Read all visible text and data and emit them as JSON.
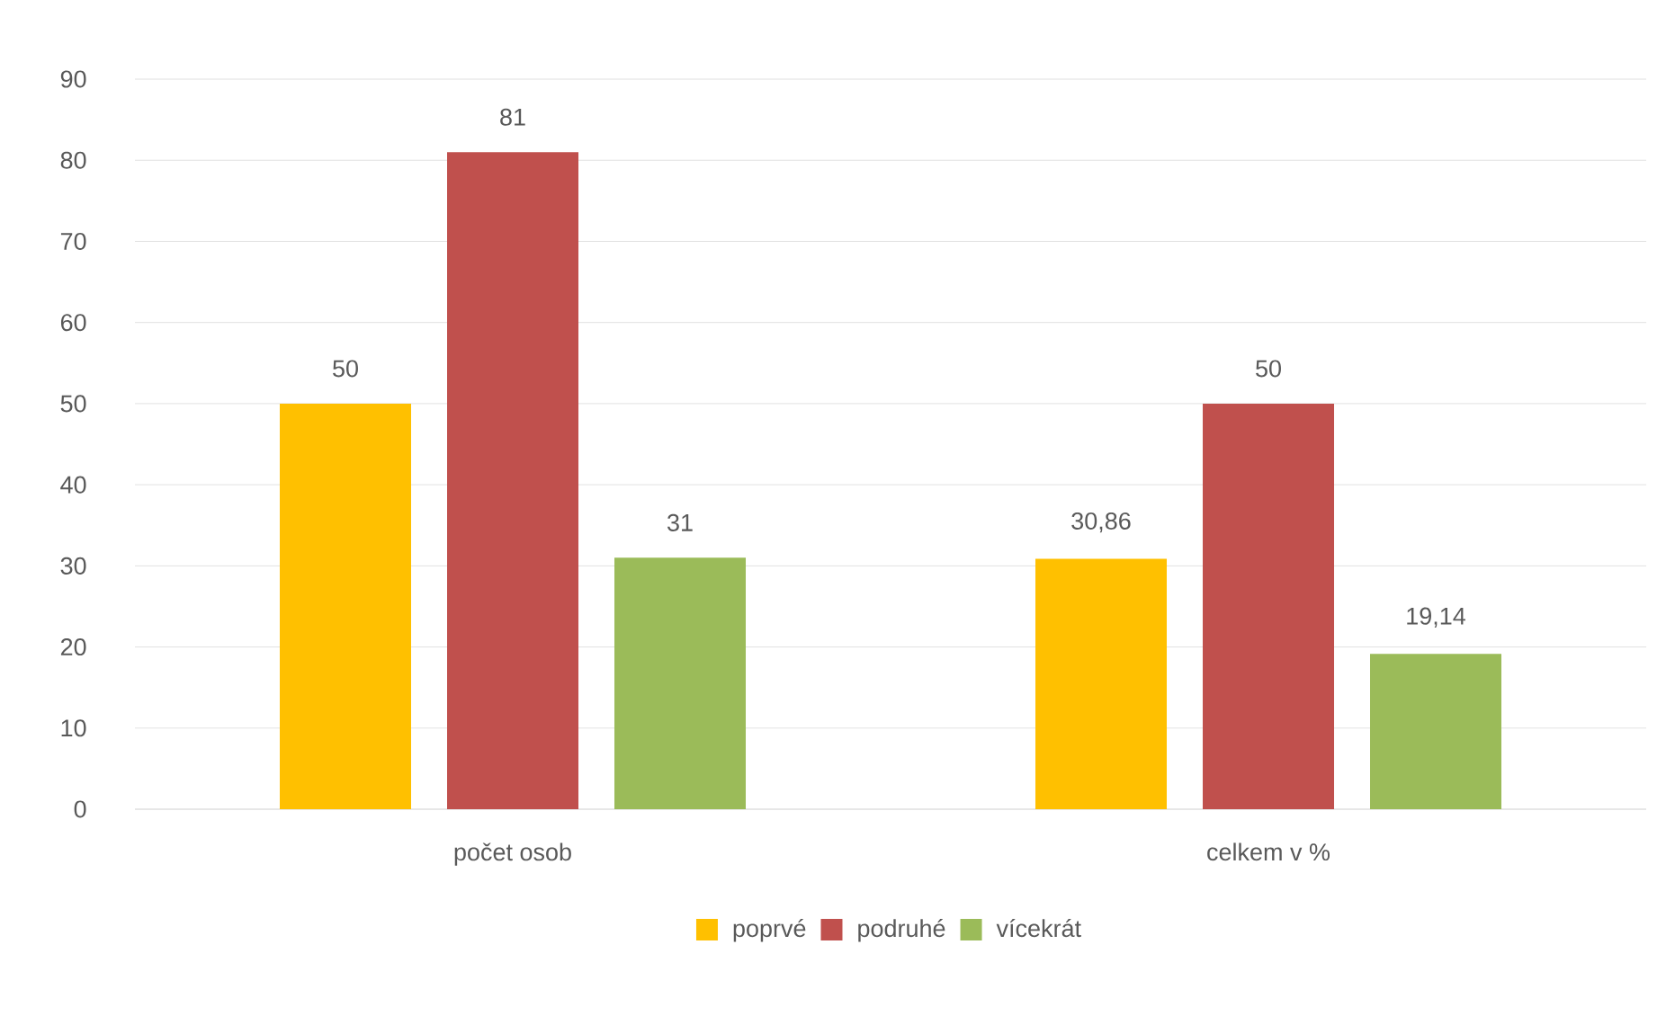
{
  "chart_data": {
    "type": "bar",
    "categories": [
      "počet osob",
      "celkem v %"
    ],
    "series": [
      {
        "name": "poprvé",
        "color": "#ffc000",
        "values": [
          50,
          30.86
        ],
        "value_labels": [
          "50",
          "30,86"
        ]
      },
      {
        "name": "podruhé",
        "color": "#c0504d",
        "values": [
          81,
          50
        ],
        "value_labels": [
          "81",
          "50"
        ]
      },
      {
        "name": "vícekrát",
        "color": "#9bbb59",
        "values": [
          31,
          19.14
        ],
        "value_labels": [
          "31",
          "19,14"
        ]
      }
    ],
    "ylim": [
      0,
      90
    ],
    "yticks": [
      0,
      10,
      20,
      30,
      40,
      50,
      60,
      70,
      80,
      90
    ],
    "grid": "y",
    "legend": "bottom"
  }
}
